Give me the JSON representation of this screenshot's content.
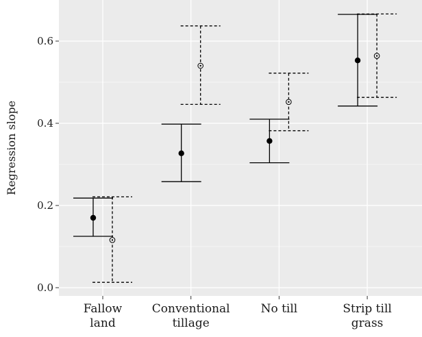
{
  "chart_data": {
    "type": "errorbar",
    "title": "",
    "xlabel": "",
    "ylabel": "Regression slope",
    "categories": [
      [
        "Fallow",
        "land"
      ],
      [
        "Conventional",
        "tillage"
      ],
      [
        "No till"
      ],
      [
        "Strip till",
        "grass"
      ]
    ],
    "ylim": [
      -0.02,
      0.7
    ],
    "yticks": [
      0.0,
      0.2,
      0.4,
      0.6
    ],
    "ytick_labels": [
      "0.0",
      "0.2",
      "0.4",
      "0.6"
    ],
    "grid": true,
    "background": "#ebebeb",
    "gridline_color": "#ffffff",
    "series": [
      {
        "marker": "filled-circle",
        "line_style": "solid",
        "color": "#000000",
        "points": [
          {
            "category": 0,
            "value": 0.17,
            "lower": 0.125,
            "upper": 0.218
          },
          {
            "category": 1,
            "value": 0.327,
            "lower": 0.258,
            "upper": 0.398
          },
          {
            "category": 2,
            "value": 0.357,
            "lower": 0.304,
            "upper": 0.41
          },
          {
            "category": 3,
            "value": 0.553,
            "lower": 0.442,
            "upper": 0.665
          }
        ]
      },
      {
        "marker": "open-circle",
        "line_style": "dashed",
        "color": "#000000",
        "points": [
          {
            "category": 0,
            "value": 0.116,
            "lower": 0.013,
            "upper": 0.221
          },
          {
            "category": 1,
            "value": 0.54,
            "lower": 0.446,
            "upper": 0.637
          },
          {
            "category": 2,
            "value": 0.452,
            "lower": 0.382,
            "upper": 0.522
          },
          {
            "category": 3,
            "value": 0.564,
            "lower": 0.463,
            "upper": 0.666
          }
        ]
      }
    ]
  }
}
